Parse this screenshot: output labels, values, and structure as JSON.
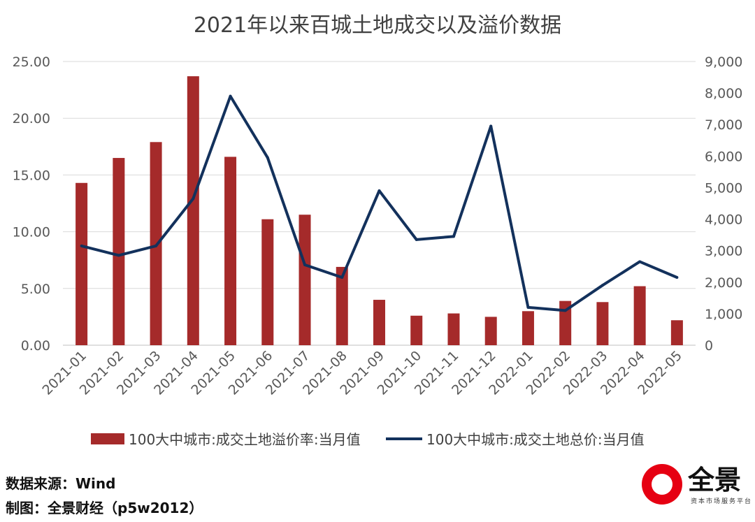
{
  "chart_data": {
    "type": "bar",
    "title": "2021年以来百城土地成交以及溢价数据",
    "categories": [
      "2021-01",
      "2021-02",
      "2021-03",
      "2021-04",
      "2021-05",
      "2021-06",
      "2021-07",
      "2021-08",
      "2021-09",
      "2021-10",
      "2021-11",
      "2021-12",
      "2022-01",
      "2022-02",
      "2022-03",
      "2022-04",
      "2022-05"
    ],
    "series": [
      {
        "name": "100大中城市:成交土地溢价率:当月值",
        "kind": "bar",
        "axis": "left",
        "color": "#a52a2a",
        "values": [
          14.3,
          16.5,
          17.9,
          23.7,
          16.6,
          11.1,
          11.5,
          6.9,
          4.0,
          2.6,
          2.8,
          2.5,
          3.0,
          3.9,
          3.8,
          5.2,
          2.2
        ]
      },
      {
        "name": "100大中城市:成交土地总价:当月值",
        "kind": "line",
        "axis": "right",
        "color": "#13315c",
        "values": [
          3150,
          2850,
          3150,
          4650,
          7900,
          5950,
          2550,
          2150,
          4900,
          3350,
          3450,
          6950,
          1200,
          1100,
          1900,
          2650,
          2150
        ]
      }
    ],
    "y_left": {
      "min": 0,
      "max": 25,
      "ticks": [
        "0.00",
        "5.00",
        "10.00",
        "15.00",
        "20.00",
        "25.00"
      ]
    },
    "y_right": {
      "min": 0,
      "max": 9000,
      "ticks": [
        "0",
        "1,000",
        "2,000",
        "3,000",
        "4,000",
        "5,000",
        "6,000",
        "7,000",
        "8,000",
        "9,000"
      ]
    },
    "grid": true,
    "legend_position": "bottom"
  },
  "footer": {
    "source": "数据来源：Wind",
    "credit": "制图：全景财经（p5w2012）"
  },
  "logo": {
    "name": "全景",
    "tagline": "资本市场服务平台"
  }
}
